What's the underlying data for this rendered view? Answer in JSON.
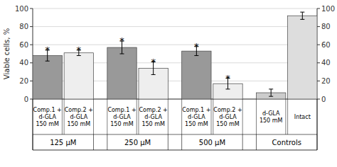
{
  "chart_data": {
    "type": "bar",
    "categories": [
      "Comp.1 +\nd-GLA\n150 mM",
      "Comp.2 +\nd-GLA\n150 mM",
      "Comp.1 +\nd-GLA\n150 mM",
      "Comp.2 +\nd-GLA\n150 mM",
      "Comp.1 +\nd-GLA\n150 mM",
      "Comp.2 +\nd-GLA\n150 mM",
      "d-GLA\n150 mM",
      "Intact"
    ],
    "values": [
      48,
      51,
      57,
      34,
      53,
      17,
      7,
      92
    ],
    "errors": [
      6,
      3,
      7,
      7,
      5,
      6,
      4,
      4
    ],
    "colors": [
      "#999999",
      "#eeeeee",
      "#999999",
      "#eeeeee",
      "#999999",
      "#eeeeee",
      "#cccccc",
      "#dddddd"
    ],
    "groups": [
      {
        "label": "125 μM",
        "categories": [
          0,
          1
        ]
      },
      {
        "label": "250 μM",
        "categories": [
          2,
          3
        ]
      },
      {
        "label": "500 μM",
        "categories": [
          4,
          5
        ]
      },
      {
        "label": "Controls",
        "categories": [
          6,
          7
        ]
      }
    ],
    "annotations": [
      {
        "text": "*",
        "index": 0
      },
      {
        "text": "*",
        "index": 1
      },
      {
        "text": "*",
        "index": 2
      },
      {
        "text": "*",
        "index": 3
      },
      {
        "text": "*",
        "index": 4
      },
      {
        "text": "*",
        "index": 5
      }
    ],
    "ylabel": "Viable cells, %",
    "ylim": [
      0,
      100
    ],
    "yticks": [
      0,
      20,
      40,
      60,
      80,
      100
    ],
    "y2lim": [
      0,
      100
    ],
    "y2ticks": [
      0,
      20,
      40,
      60,
      80,
      100
    ],
    "grid": true
  }
}
